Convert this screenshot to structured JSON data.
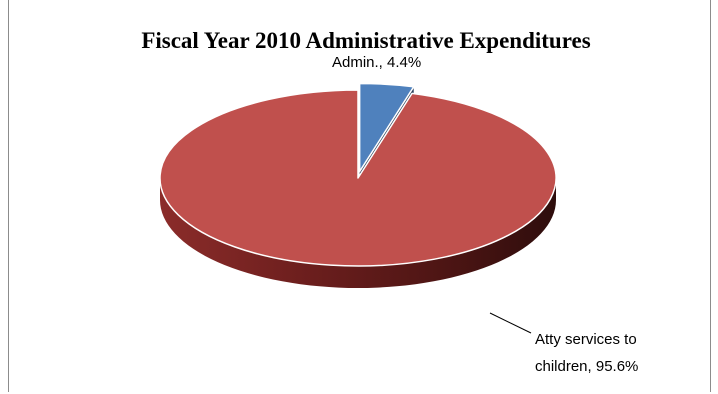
{
  "chart_data": {
    "type": "pie",
    "title": "Fiscal Year 2010 Administrative Expenditures",
    "slices": [
      {
        "label": "Admin.",
        "value": 4.4,
        "data_label": "Admin., 4.4%",
        "color": "#4f81bd",
        "exploded": true
      },
      {
        "label": "Atty services to children",
        "value": 95.6,
        "data_label_lines": [
          "Atty services to",
          "children, 95.6%"
        ],
        "color": "#c0504d",
        "exploded": false
      }
    ],
    "style": "3d-exploded"
  }
}
